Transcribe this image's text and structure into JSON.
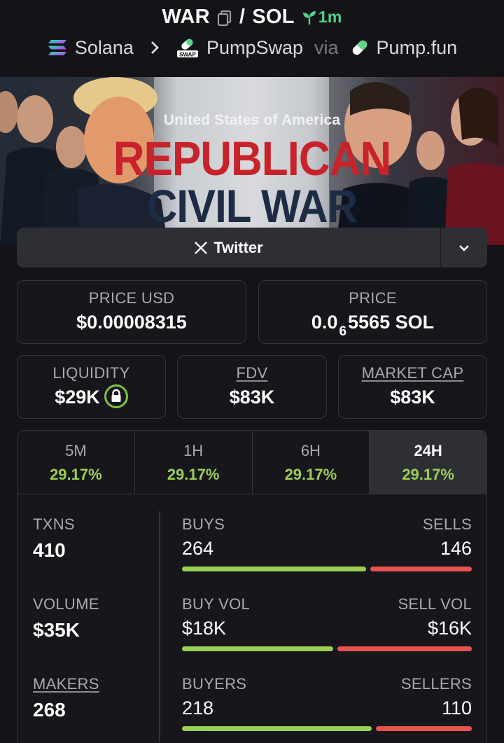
{
  "header": {
    "base_token": "WAR",
    "separator": "/",
    "quote_token": "SOL",
    "age": "1m",
    "chain": "Solana",
    "dex": "PumpSwap",
    "dex_badge": "SWAP",
    "via_label": "via",
    "launchpad": "Pump.fun"
  },
  "banner": {
    "subtitle": "United States of America",
    "title_line1": "REPUBLICAN",
    "title_line2": "CIVIL WAR"
  },
  "social": {
    "twitter_label": "Twitter",
    "twitter_icon": "x-logo-icon",
    "more_icon": "chevron-down-icon"
  },
  "stats": {
    "price_usd_label": "PRICE USD",
    "price_usd": "$0.00008315",
    "price_label": "PRICE",
    "price_prefix": "0.0",
    "price_zeros": "6",
    "price_suffix": "5565 SOL",
    "liquidity_label": "LIQUIDITY",
    "liquidity": "$29K",
    "fdv_label": "FDV",
    "fdv": "$83K",
    "mcap_label": "MARKET CAP",
    "mcap": "$83K"
  },
  "timeframes": [
    {
      "label": "5M",
      "change": "29.17%"
    },
    {
      "label": "1H",
      "change": "29.17%"
    },
    {
      "label": "6H",
      "change": "29.17%"
    },
    {
      "label": "24H",
      "change": "29.17%"
    }
  ],
  "active_timeframe": "24H",
  "txns": {
    "txns_label": "TXNS",
    "txns": "410",
    "volume_label": "VOLUME",
    "volume": "$35K",
    "makers_label": "MAKERS",
    "makers": "268",
    "buys_label": "BUYS",
    "buys": "264",
    "sells_label": "SELLS",
    "sells": "146",
    "buy_vol_label": "BUY VOL",
    "buy_vol": "$18K",
    "sell_vol_label": "SELL VOL",
    "sell_vol": "$16K",
    "buyers_label": "BUYERS",
    "buyers": "218",
    "sellers_label": "SELLERS",
    "sellers": "110",
    "buys_ratio": 0.644,
    "buy_vol_ratio": 0.53,
    "buyers_ratio": 0.665
  },
  "colors": {
    "positive": "#9bcf54",
    "negative": "#e8534f",
    "age": "#4cd48a",
    "lock": "#7fc243"
  }
}
